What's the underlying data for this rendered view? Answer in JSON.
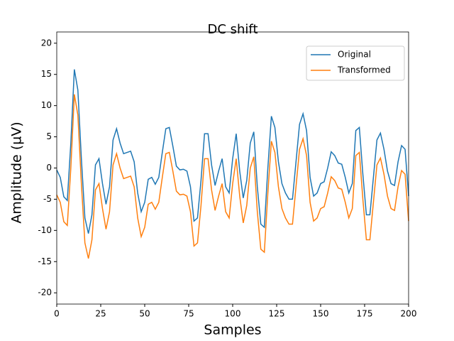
{
  "chart_data": {
    "type": "line",
    "title": "DC shift",
    "x_label": "Samples",
    "y_label": "Amplitude (µV)",
    "x": [
      0,
      2,
      4,
      6,
      8,
      10,
      12,
      14,
      16,
      18,
      20,
      22,
      24,
      26,
      28,
      30,
      32,
      34,
      36,
      38,
      40,
      42,
      44,
      46,
      48,
      50,
      52,
      54,
      56,
      58,
      60,
      62,
      64,
      66,
      68,
      70,
      72,
      74,
      76,
      78,
      80,
      82,
      84,
      86,
      88,
      90,
      92,
      94,
      96,
      98,
      100,
      102,
      104,
      106,
      108,
      110,
      112,
      114,
      116,
      118,
      120,
      122,
      124,
      126,
      128,
      130,
      132,
      134,
      136,
      138,
      140,
      142,
      144,
      146,
      148,
      150,
      152,
      154,
      156,
      158,
      160,
      162,
      164,
      166,
      168,
      170,
      172,
      174,
      176,
      178,
      180,
      182,
      184,
      186,
      188,
      190,
      192,
      194,
      196,
      198,
      200
    ],
    "series": [
      {
        "name": "Original",
        "color": "#1f77b4",
        "values": [
          -0.3,
          -1.5,
          -4.6,
          -5.2,
          4,
          15.8,
          12.5,
          1.5,
          -8,
          -10.5,
          -7.5,
          0.5,
          1.5,
          -2.5,
          -5.8,
          -3,
          4.5,
          6.3,
          4,
          2.3,
          2.5,
          2.7,
          1,
          -4,
          -7,
          -5.5,
          -1.8,
          -1.5,
          -2.6,
          -1.5,
          2.5,
          6.3,
          6.5,
          3.5,
          0.3,
          -0.3,
          -0.2,
          -0.5,
          -3,
          -8.5,
          -8,
          -2,
          5.5,
          5.5,
          0.5,
          -2.8,
          -0.5,
          1.5,
          -3,
          -4,
          1.5,
          5.5,
          -0.5,
          -4.8,
          -2,
          4,
          5.8,
          -3,
          -9,
          -9.5,
          0,
          8.3,
          6.5,
          1,
          -2.5,
          -4,
          -5,
          -5,
          1,
          7,
          8.7,
          6,
          -1.5,
          -4.5,
          -4,
          -2.5,
          -2.2,
          0,
          2.6,
          2,
          0.8,
          0.6,
          -1.5,
          -4,
          -2.5,
          6,
          6.5,
          -1,
          -7.5,
          -7.5,
          -1.5,
          4.5,
          5.6,
          3,
          -0.5,
          -2.5,
          -2.8,
          1,
          3.6,
          3,
          -4.5
        ]
      },
      {
        "name": "Transformed",
        "color": "#ff7f0e",
        "values": [
          -4.3,
          -5.5,
          -8.6,
          -9.2,
          0,
          11.8,
          8.5,
          -2.5,
          -12,
          -14.5,
          -11.5,
          -3.5,
          -2.5,
          -6.5,
          -9.8,
          -7,
          0.5,
          2.3,
          0,
          -1.7,
          -1.5,
          -1.3,
          -3,
          -8,
          -11,
          -9.5,
          -5.8,
          -5.5,
          -6.6,
          -5.5,
          -1.5,
          2.3,
          2.5,
          -0.5,
          -3.7,
          -4.3,
          -4.2,
          -4.5,
          -7,
          -12.5,
          -12,
          -6,
          1.5,
          1.5,
          -3.5,
          -6.8,
          -4.5,
          -2.5,
          -7,
          -8,
          -2.5,
          1.5,
          -4.5,
          -8.8,
          -6,
          0,
          1.8,
          -7,
          -13,
          -13.5,
          -4,
          4.3,
          2.5,
          -3,
          -6.5,
          -8,
          -9,
          -9,
          -3,
          3,
          4.7,
          2,
          -5.5,
          -8.5,
          -8,
          -6.5,
          -6.2,
          -4,
          -1.4,
          -2,
          -3.2,
          -3.4,
          -5.5,
          -8,
          -6.5,
          2,
          2.5,
          -5,
          -11.5,
          -11.5,
          -5.5,
          0.5,
          1.6,
          -1,
          -4.5,
          -6.5,
          -6.8,
          -3,
          -0.4,
          -1,
          -8.5
        ]
      }
    ],
    "xlim": [
      0,
      200
    ],
    "ylim": [
      -21.8,
      21.8
    ],
    "xticks": [
      0,
      25,
      50,
      75,
      100,
      125,
      150,
      175,
      200
    ],
    "yticks": [
      -20,
      -15,
      -10,
      -5,
      0,
      5,
      10,
      15,
      20
    ],
    "legend": "upper right"
  }
}
